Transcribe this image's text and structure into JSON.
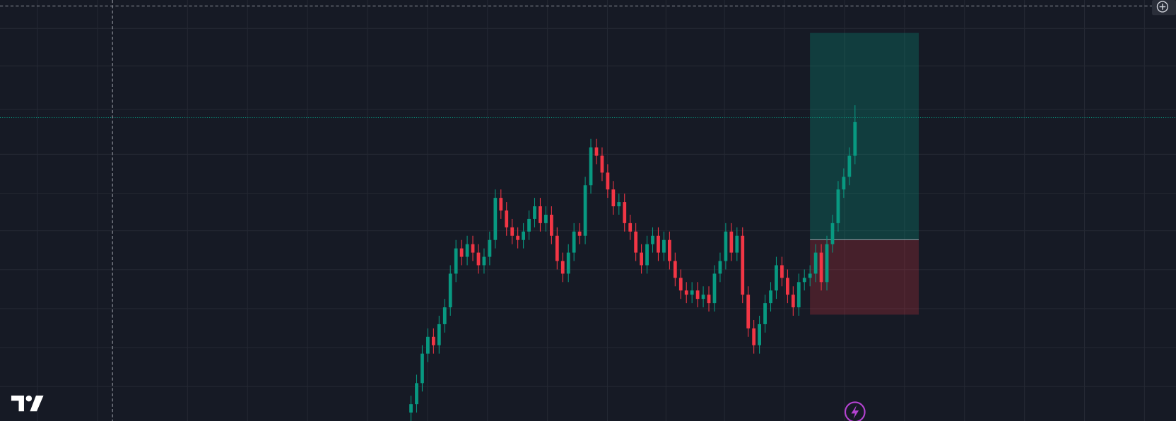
{
  "chart_data": {
    "type": "candlestick",
    "open": [
      2,
      4,
      9,
      16,
      20,
      18,
      23,
      27,
      35,
      41,
      39,
      42,
      40,
      37,
      39,
      43,
      53,
      50,
      46,
      44,
      43,
      45,
      48,
      51,
      47,
      49,
      44,
      38,
      35,
      40,
      45,
      44,
      56,
      65,
      63,
      59,
      55,
      51,
      52,
      47,
      45,
      40,
      37,
      42,
      44,
      40,
      43,
      38,
      34,
      31,
      30,
      31,
      29,
      30,
      28,
      35,
      38,
      45,
      40,
      44,
      30,
      22,
      18,
      23,
      28,
      31,
      37,
      34,
      30,
      27,
      33,
      34,
      35,
      40,
      33,
      42,
      47,
      55,
      58,
      63
    ],
    "high": [
      6,
      11,
      18,
      22,
      22,
      25,
      29,
      37,
      43,
      43,
      44,
      44,
      42,
      41,
      45,
      55,
      55,
      52,
      48,
      46,
      47,
      50,
      53,
      53,
      51,
      51,
      46,
      40,
      42,
      47,
      47,
      58,
      67,
      67,
      65,
      61,
      57,
      54,
      54,
      49,
      47,
      42,
      44,
      46,
      46,
      45,
      45,
      40,
      36,
      33,
      33,
      33,
      32,
      32,
      37,
      40,
      47,
      47,
      46,
      46,
      32,
      24,
      25,
      30,
      33,
      39,
      39,
      36,
      32,
      35,
      36,
      37,
      42,
      42,
      44,
      49,
      57,
      60,
      65,
      75
    ],
    "low": [
      0,
      2,
      7,
      14,
      16,
      16,
      21,
      25,
      33,
      37,
      37,
      38,
      35,
      35,
      37,
      41,
      48,
      44,
      42,
      41,
      41,
      43,
      46,
      45,
      45,
      42,
      36,
      33,
      33,
      38,
      42,
      42,
      54,
      61,
      57,
      53,
      49,
      49,
      45,
      43,
      38,
      35,
      35,
      40,
      38,
      38,
      36,
      32,
      29,
      28,
      28,
      27,
      27,
      26,
      26,
      33,
      36,
      38,
      38,
      28,
      20,
      16,
      16,
      21,
      26,
      29,
      32,
      28,
      25,
      25,
      31,
      32,
      33,
      31,
      31,
      40,
      45,
      53,
      56,
      61
    ],
    "close": [
      4,
      9,
      16,
      20,
      18,
      23,
      27,
      35,
      41,
      39,
      42,
      40,
      37,
      39,
      43,
      53,
      50,
      46,
      44,
      43,
      45,
      48,
      51,
      47,
      49,
      44,
      38,
      35,
      40,
      45,
      44,
      56,
      65,
      63,
      59,
      55,
      51,
      52,
      47,
      45,
      40,
      37,
      42,
      44,
      40,
      43,
      38,
      34,
      31,
      30,
      31,
      29,
      30,
      28,
      35,
      38,
      45,
      40,
      44,
      30,
      22,
      18,
      23,
      28,
      31,
      37,
      34,
      30,
      27,
      33,
      34,
      35,
      40,
      33,
      42,
      47,
      55,
      58,
      63,
      71
    ],
    "ylim": [
      0,
      100
    ],
    "colors": {
      "up": "#089981",
      "down": "#f23645"
    }
  }
}
